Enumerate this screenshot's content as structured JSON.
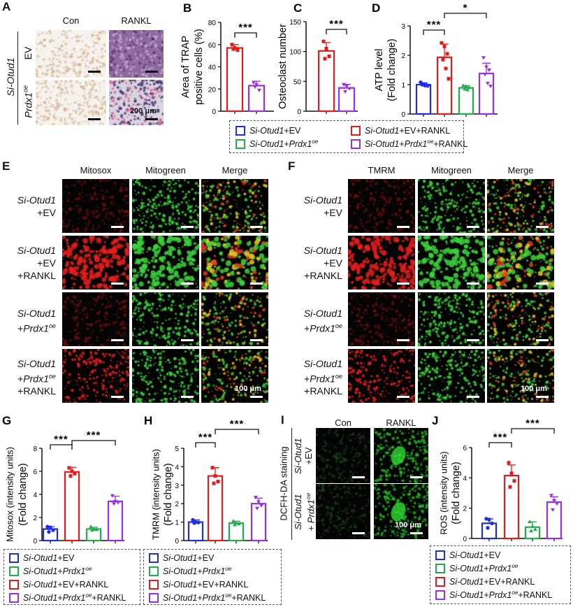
{
  "colors": {
    "blue": "#1f2ee6",
    "red": "#e8191b",
    "green": "#22ad4c",
    "purple": "#9a2ee8"
  },
  "groups": {
    "ev": [
      {
        "t": "Si-Otud1",
        "i": true
      },
      {
        "t": "+EV"
      }
    ],
    "ev_rankl": [
      {
        "t": "Si-Otud1",
        "i": true
      },
      {
        "t": "+EV+RANKL"
      }
    ],
    "prdx": [
      {
        "t": "Si-Otud1",
        "i": true
      },
      {
        "t": "+"
      },
      {
        "t": "Prdx1",
        "i": true
      },
      {
        "t": "oe",
        "i": true,
        "sup": true
      }
    ],
    "prdx_rankl": [
      {
        "t": "Si-Otud1",
        "i": true
      },
      {
        "t": "+"
      },
      {
        "t": "Prdx1",
        "i": true
      },
      {
        "t": "oe",
        "i": true,
        "sup": true
      },
      {
        "t": "+RANKL"
      }
    ]
  },
  "panel_a": {
    "label": "A",
    "columns": [
      "Con",
      "RANKL"
    ],
    "group_label": "Si-Otud1",
    "rows": [
      {
        "label": "EV"
      },
      {
        "label": "Prdx1",
        "sup": "oe"
      }
    ],
    "scale_bar": "200 μm"
  },
  "panel_e": {
    "label": "E",
    "columns": [
      "Mitosox",
      "Mitogreen",
      "Merge"
    ],
    "rows": [
      [
        {
          "t": "Si-Otud1",
          "i": true
        },
        {
          "br": true
        },
        {
          "t": "+EV"
        }
      ],
      [
        {
          "t": "Si-Otud1",
          "i": true
        },
        {
          "br": true
        },
        {
          "t": "+EV"
        },
        {
          "br": true
        },
        {
          "t": "+RANKL"
        }
      ],
      [
        {
          "t": "Si-Otud1",
          "i": true
        },
        {
          "br": true
        },
        {
          "t": "+"
        },
        {
          "t": "Prdx1",
          "i": true
        },
        {
          "t": "oe",
          "i": true,
          "sup": true
        }
      ],
      [
        {
          "t": "Si-Otud1",
          "i": true
        },
        {
          "br": true
        },
        {
          "t": "+"
        },
        {
          "t": "Prdx1",
          "i": true
        },
        {
          "t": "oe",
          "i": true,
          "sup": true
        },
        {
          "br": true
        },
        {
          "t": "+RANKL"
        }
      ]
    ],
    "scale_bar": "100 μm"
  },
  "panel_f": {
    "label": "F",
    "columns": [
      "TMRM",
      "Mitogreen",
      "Merge"
    ],
    "rows": [
      [
        {
          "t": "Si-Otud1",
          "i": true
        },
        {
          "br": true
        },
        {
          "t": "+EV"
        }
      ],
      [
        {
          "t": "Si-Otud1",
          "i": true
        },
        {
          "br": true
        },
        {
          "t": "+EV"
        },
        {
          "br": true
        },
        {
          "t": "+RANKL"
        }
      ],
      [
        {
          "t": "Si-Otud1",
          "i": true
        },
        {
          "br": true
        },
        {
          "t": "+"
        },
        {
          "t": "Prdx1",
          "i": true
        },
        {
          "t": "oe",
          "i": true,
          "sup": true
        }
      ],
      [
        {
          "t": "Si-Otud1",
          "i": true
        },
        {
          "br": true
        },
        {
          "t": "+"
        },
        {
          "t": "Prdx1",
          "i": true
        },
        {
          "t": "oe",
          "i": true,
          "sup": true
        },
        {
          "br": true
        },
        {
          "t": "+RANKL"
        }
      ]
    ],
    "scale_bar": "100 μm"
  },
  "panel_i": {
    "label": "I",
    "columns": [
      "Con",
      "RANKL"
    ],
    "side_label": "DCFH-DA staining",
    "rows": [
      [
        {
          "t": "Si-Otud1",
          "i": true
        },
        {
          "br": true
        },
        {
          "t": "+EV"
        }
      ],
      [
        {
          "t": "Si-Otud1",
          "i": true
        },
        {
          "br": true
        },
        {
          "t": "+ "
        },
        {
          "t": "Prdx1",
          "i": true
        },
        {
          "t": "oe",
          "i": true,
          "sup": true
        }
      ]
    ],
    "scale_bar": "100 μm"
  },
  "legend_top": [
    "ev",
    "ev_rankl",
    "prdx",
    "prdx_rankl"
  ],
  "legend_bottom": [
    "ev",
    "prdx",
    "ev_rankl",
    "prdx_rankl"
  ],
  "chart_data": [
    {
      "id": "B",
      "panel_label": "B",
      "type": "bar",
      "groups": [
        "ev_rankl",
        "prdx_rankl"
      ],
      "colors": [
        "red",
        "purple"
      ],
      "values": [
        57,
        23
      ],
      "errors": [
        3,
        4
      ],
      "points": [
        [
          60,
          57,
          55,
          56
        ],
        [
          26,
          24,
          19,
          22
        ]
      ],
      "ylim": [
        0,
        80
      ],
      "yticks": [
        0,
        20,
        40,
        60,
        80
      ],
      "ylabel": [
        "Area of TRAP",
        "positive cells (%)"
      ],
      "significance": [
        {
          "from": 0,
          "to": 1,
          "label": "***"
        }
      ]
    },
    {
      "id": "C",
      "panel_label": "C",
      "type": "bar",
      "groups": [
        "ev_rankl",
        "prdx_rankl"
      ],
      "colors": [
        "red",
        "purple"
      ],
      "values": [
        101,
        39
      ],
      "errors": [
        14,
        6
      ],
      "points": [
        [
          117,
          105,
          92,
          88
        ],
        [
          45,
          42,
          38,
          33
        ]
      ],
      "ylim": [
        0,
        150
      ],
      "yticks": [
        0,
        50,
        100,
        150
      ],
      "ylabel": [
        "Osteoclast number"
      ],
      "significance": [
        {
          "from": 0,
          "to": 1,
          "label": "***"
        }
      ]
    },
    {
      "id": "D",
      "panel_label": "D",
      "type": "bar",
      "groups": [
        "ev",
        "ev_rankl",
        "prdx",
        "prdx_rankl"
      ],
      "colors": [
        "blue",
        "red",
        "green",
        "purple"
      ],
      "values": [
        1.0,
        1.93,
        0.89,
        1.38
      ],
      "errors": [
        0.06,
        0.45,
        0.07,
        0.35
      ],
      "points": [
        [
          1.08,
          1.02,
          0.98,
          1.0,
          0.97,
          0.96
        ],
        [
          2.42,
          2.3,
          2.05,
          1.85,
          1.55,
          1.2
        ],
        [
          0.97,
          0.95,
          0.9,
          0.85,
          0.82
        ],
        [
          1.92,
          1.6,
          1.5,
          1.35,
          1.05,
          0.95
        ]
      ],
      "ylim": [
        0,
        3
      ],
      "yticks": [
        0,
        1,
        2,
        3
      ],
      "ylabel": [
        "ATP level",
        "(Fold change)"
      ],
      "significance": [
        {
          "from": 0,
          "to": 1,
          "label": "***"
        },
        {
          "from": 1,
          "to": 3,
          "label": "*"
        }
      ]
    },
    {
      "id": "G",
      "panel_label": "G",
      "type": "bar",
      "groups": [
        "ev",
        "ev_rankl",
        "prdx",
        "prdx_rankl"
      ],
      "colors": [
        "blue",
        "red",
        "green",
        "purple"
      ],
      "values": [
        1.0,
        5.95,
        1.0,
        3.4
      ],
      "errors": [
        0.2,
        0.4,
        0.15,
        0.45
      ],
      "points": [
        [
          1.2,
          1.15,
          0.9,
          0.75
        ],
        [
          6.3,
          6.0,
          5.8,
          5.6
        ],
        [
          1.2,
          1.0,
          0.95,
          0.9
        ],
        [
          3.9,
          3.4,
          3.3,
          3.2
        ]
      ],
      "ylim": [
        0,
        8
      ],
      "yticks": [
        0,
        2,
        4,
        6,
        8
      ],
      "ylabel": [
        "Mitosox (intensity units)",
        "(Fold change)"
      ],
      "significance": [
        {
          "from": 0,
          "to": 1,
          "label": "***"
        },
        {
          "from": 1,
          "to": 3,
          "label": "***"
        }
      ]
    },
    {
      "id": "H",
      "panel_label": "H",
      "type": "bar",
      "groups": [
        "ev",
        "ev_rankl",
        "prdx",
        "prdx_rankl"
      ],
      "colors": [
        "blue",
        "red",
        "green",
        "purple"
      ],
      "values": [
        1.0,
        3.5,
        0.95,
        2.0
      ],
      "errors": [
        0.12,
        0.45,
        0.1,
        0.3
      ],
      "points": [
        [
          1.12,
          1.0,
          0.98,
          0.95
        ],
        [
          3.95,
          3.5,
          3.2,
          3.1
        ],
        [
          1.05,
          0.95,
          0.9,
          0.85
        ],
        [
          2.35,
          2.1,
          1.9,
          1.75
        ]
      ],
      "ylim": [
        0,
        5
      ],
      "yticks": [
        0,
        1,
        2,
        3,
        4,
        5
      ],
      "ylabel": [
        "TMRM (intensity units)",
        "(Fold change)"
      ],
      "significance": [
        {
          "from": 0,
          "to": 1,
          "label": "***"
        },
        {
          "from": 1,
          "to": 3,
          "label": "***"
        }
      ]
    },
    {
      "id": "J",
      "panel_label": "J",
      "type": "bar",
      "groups": [
        "ev",
        "ev_rankl",
        "prdx",
        "prdx_rankl"
      ],
      "colors": [
        "blue",
        "red",
        "green",
        "purple"
      ],
      "values": [
        1.0,
        4.15,
        0.75,
        2.4
      ],
      "errors": [
        0.3,
        0.7,
        0.35,
        0.35
      ],
      "points": [
        [
          1.3,
          1.25,
          1.0,
          0.7
        ],
        [
          5.0,
          4.3,
          3.8,
          3.4
        ],
        [
          1.1,
          0.8,
          0.6,
          0.5
        ],
        [
          2.85,
          2.5,
          2.3,
          1.9
        ]
      ],
      "ylim": [
        0,
        6
      ],
      "yticks": [
        0,
        2,
        4,
        6
      ],
      "ylabel": [
        "ROS (intensity units)",
        "(Fold change)"
      ],
      "significance": [
        {
          "from": 0,
          "to": 1,
          "label": "***"
        },
        {
          "from": 1,
          "to": 3,
          "label": "***"
        }
      ]
    }
  ]
}
